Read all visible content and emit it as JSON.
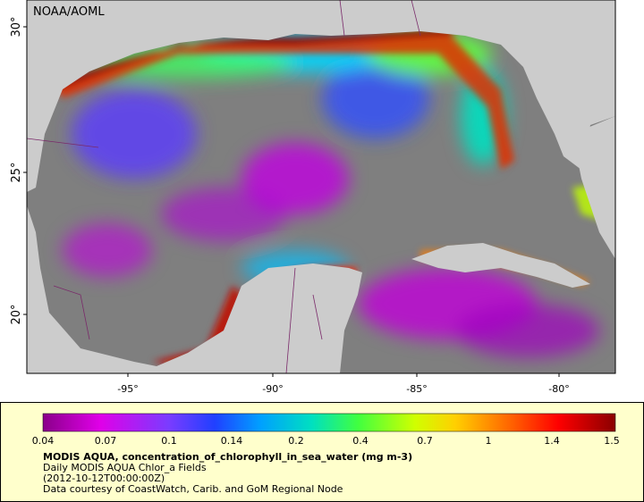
{
  "map": {
    "source_label": "NOAA/AOML",
    "lat_labels": [
      "30°",
      "25°",
      "20°"
    ],
    "lon_labels": [
      "-95°",
      "-90°",
      "-85°",
      "-80°"
    ],
    "colorbar": {
      "ticks": [
        0.04,
        0.07,
        0.1,
        0.14,
        0.2,
        0.4,
        0.7,
        1,
        1.4,
        1.5
      ]
    },
    "caption": {
      "title": "MODIS AQUA, concentration_of_chlorophyll_in_sea_water (mg m-3)",
      "line1": "Daily MODIS AQUA Chlor_a Fields",
      "line2": "(2012-10-12T00:00:00Z)",
      "line3": "Data courtesy of CoastWatch, Carib. and GoM Regional Node"
    }
  }
}
